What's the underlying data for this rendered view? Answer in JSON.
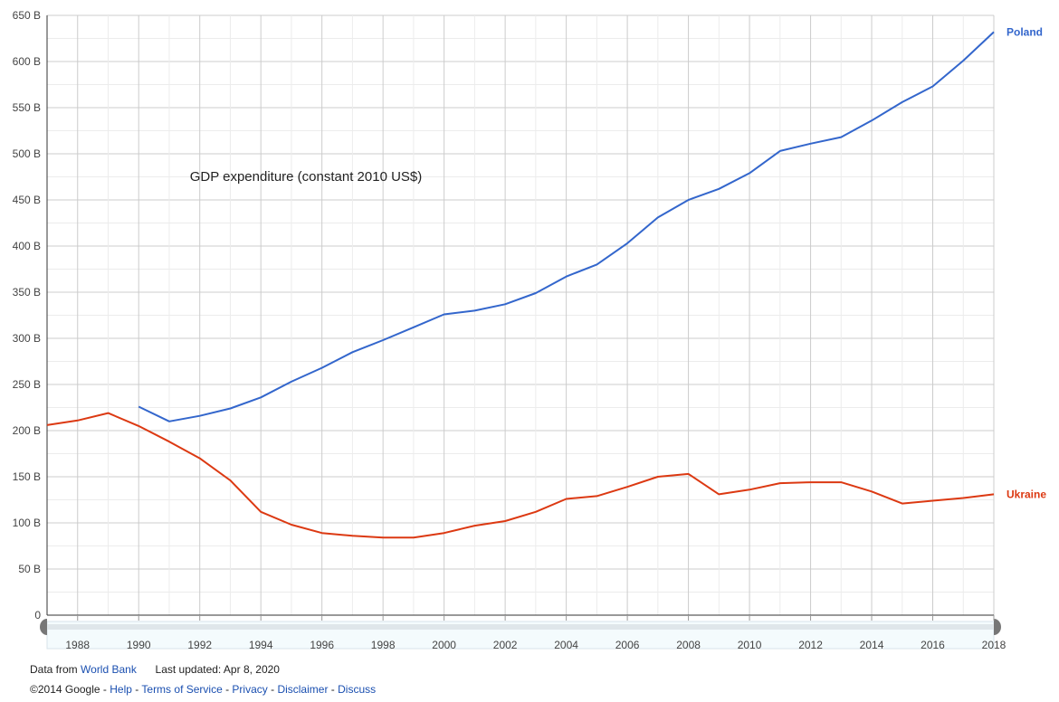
{
  "chart_data": {
    "type": "line",
    "title": "GDP expenditure (constant 2010 US$)",
    "xlim": [
      1987,
      2018
    ],
    "ylim": [
      0,
      650
    ],
    "grid": true,
    "y_ticks": [
      0,
      50,
      100,
      150,
      200,
      250,
      300,
      350,
      400,
      450,
      500,
      550,
      600,
      650
    ],
    "y_tick_labels": [
      "0",
      "50 B",
      "100 B",
      "150 B",
      "200 B",
      "250 B",
      "300 B",
      "350 B",
      "400 B",
      "450 B",
      "500 B",
      "550 B",
      "600 B",
      "650 B"
    ],
    "x_ticks": [
      1988,
      1990,
      1992,
      1994,
      1996,
      1998,
      2000,
      2002,
      2004,
      2006,
      2008,
      2010,
      2012,
      2014,
      2016,
      2018
    ],
    "x_tick_labels": [
      "1988",
      "1990",
      "1992",
      "1994",
      "1996",
      "1998",
      "2000",
      "2002",
      "2004",
      "2006",
      "2008",
      "2010",
      "2012",
      "2014",
      "2016",
      "2018"
    ],
    "series": [
      {
        "name": "Poland",
        "color": "#3366cc",
        "x": [
          1990,
          1991,
          1992,
          1993,
          1994,
          1995,
          1996,
          1997,
          1998,
          1999,
          2000,
          2001,
          2002,
          2003,
          2004,
          2005,
          2006,
          2007,
          2008,
          2009,
          2010,
          2011,
          2012,
          2013,
          2014,
          2015,
          2016,
          2017,
          2018
        ],
        "values": [
          226,
          210,
          216,
          224,
          236,
          253,
          268,
          285,
          298,
          312,
          326,
          330,
          337,
          349,
          367,
          380,
          403,
          431,
          450,
          462,
          479,
          503,
          511,
          518,
          536,
          556,
          573,
          601,
          632
        ]
      },
      {
        "name": "Ukraine",
        "color": "#dc3912",
        "x": [
          1987,
          1988,
          1989,
          1990,
          1991,
          1992,
          1993,
          1994,
          1995,
          1996,
          1997,
          1998,
          1999,
          2000,
          2001,
          2002,
          2003,
          2004,
          2005,
          2006,
          2007,
          2008,
          2009,
          2010,
          2011,
          2012,
          2013,
          2014,
          2015,
          2016,
          2017,
          2018
        ],
        "values": [
          206,
          211,
          219,
          205,
          188,
          170,
          146,
          112,
          98,
          89,
          86,
          84,
          84,
          89,
          97,
          102,
          112,
          126,
          129,
          139,
          150,
          153,
          131,
          136,
          143,
          144,
          144,
          134,
          121,
          124,
          127,
          131
        ]
      }
    ]
  },
  "footer": {
    "data_from_label": "Data from",
    "source_link": "World Bank",
    "last_updated": "Last updated: Apr 8, 2020",
    "copyright": "©2014 Google",
    "sep": " - ",
    "links": [
      "Help",
      "Terms of Service",
      "Privacy",
      "Disclaimer",
      "Discuss"
    ]
  }
}
